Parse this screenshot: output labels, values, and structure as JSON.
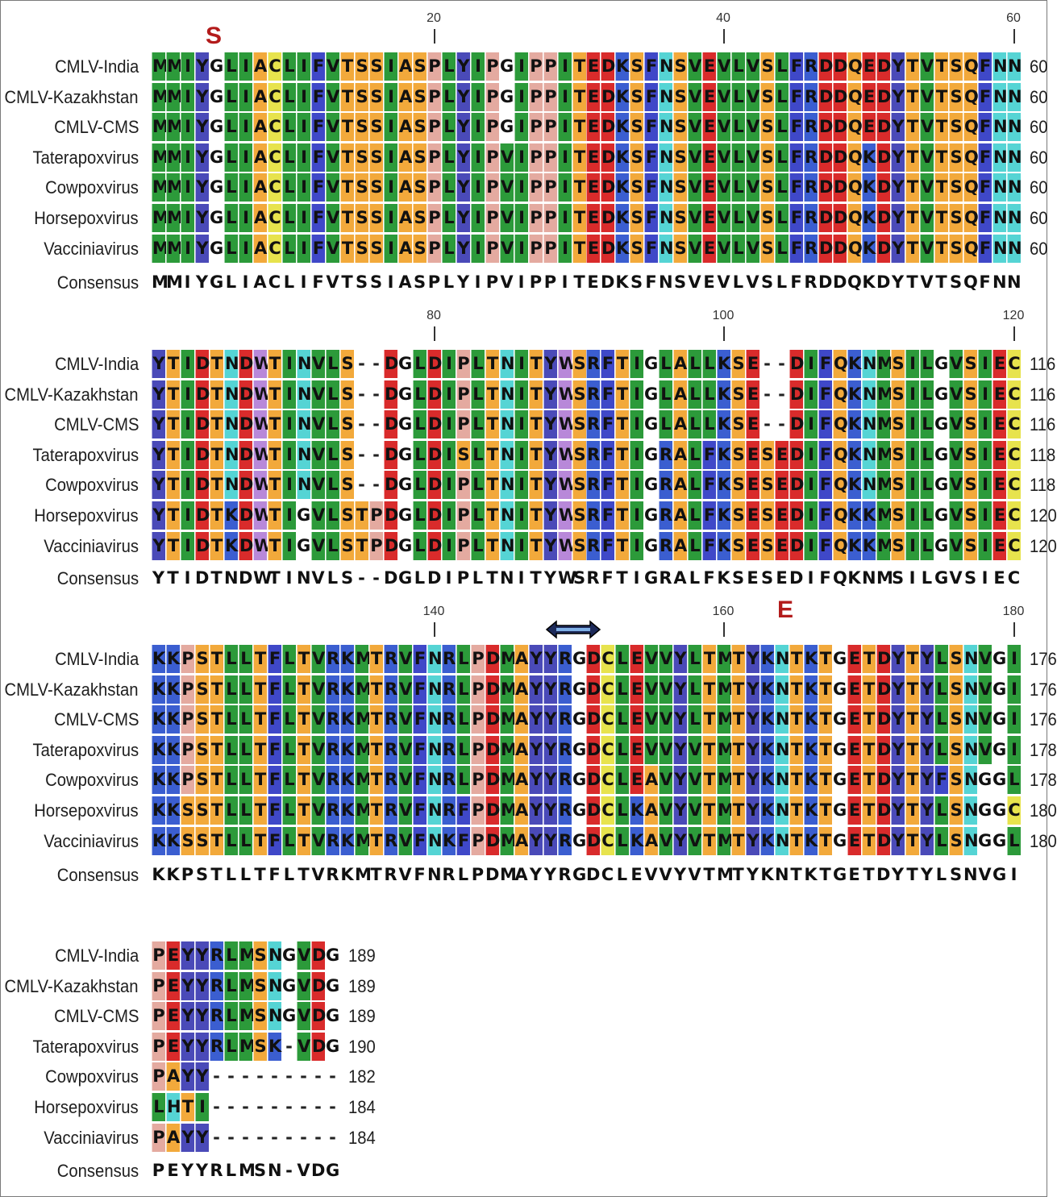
{
  "sequence_names": [
    "CMLV-India",
    "CMLV-Kazakhstan",
    "CMLV-CMS",
    "Taterapoxvirus",
    "Cowpoxvirus",
    "Horsepoxvirus",
    "Vacciniavirus"
  ],
  "consensus_label": "Consensus",
  "colors": {
    "A": "#f2a93b",
    "S": "#f2a93b",
    "T": "#f2a93b",
    "Q": "#f2a93b",
    "I": "#2c9a3a",
    "L": "#2c9a3a",
    "V": "#2c9a3a",
    "M": "#2c9a3a",
    "F": "#3f48c8",
    "W": "#b888d9",
    "Y": "#4a4ab8",
    "H": "#55d4d4",
    "N": "#55d4d4",
    "C": "#e7e34d",
    "G": "#ffffff",
    "P": "#e4aaa0",
    "D": "#d92b2b",
    "E": "#d92b2b",
    "K": "#3b5ed0",
    "R": "#3b5ed0",
    "-": "#ffffff"
  },
  "annotations": {
    "mark_S": "S",
    "mark_E": "E"
  },
  "blocks": [
    {
      "rows": [
        "MMIYGLIACLIFVTSSIASPLYIPGIPPITEDKSFNSVEVLVSLFRDDQEDYTVTSQFNN",
        "MMIYGLIACLIFVTSSIASPLYIPGIPPITEDKSFNSVEVLVSLFRDDQEDYTVTSQFNN",
        "MMIYGLIACLIFVTSSIASPLYIPGIPPITEDKSFNSVEVLVSLFRDDQEDYTVTSQFNN",
        "MMIYGLIACLIFVTSSIASPLYIPVIPPITEDKSFNSVEVLVSLFRDDQKDYTVTSQFNN",
        "MMIYGLIACLIFVTSSIASPLYIPVIPPITEDKSFNSVEVLVSLFRDDQKDYTVTSQFNN",
        "MMIYGLIACLIFVTSSIASPLYIPVIPPITEDKSFNSVEVLVSLFRDDQKDYTVTSQFNN",
        "MMIYGLIACLIFVTSSIASPLYIPVIPPITEDKSFNSVEVLVSLFRDDQKDYTVTSQFNN"
      ],
      "consensus": "MMIYGLIACLIFVTSSIASPLYIPVIPPITEDKSFNSVEVLVSLFRDDQKDYTVTSQFNN",
      "ends": [
        "60",
        "60",
        "60",
        "60",
        "60",
        "60",
        "60"
      ],
      "ticks": [
        {
          "label": "20",
          "col": 19
        },
        {
          "label": "40",
          "col": 39
        },
        {
          "label": "60",
          "col": 59
        }
      ]
    },
    {
      "rows": [
        "YTIDTNDWTINVLS--DGLDIPLTNITYWSRFTIGLALLKSE--DIFQKNMSILGVSIEC",
        "YTIDTNDWTINVLS--DGLDIPLTNITYWSRFTIGLALLKSE--DIFQKNMSILGVSIEC",
        "YTIDTNDWTINVLS--DGLDIPLTNITYWSRFTIGLALLKSE--DIFQKNMSILGVSIEC",
        "YTIDTNDWTINVLS--DGLDISLTNITYWSRFTIGRALFKSESEDIFQKNMSILGVSIEC",
        "YTIDTNDWTINVLS--DGLDIPLTNITYWSRFTIGRALFKSESEDIFQKNMSILGVSIEC",
        "YTIDTKDWTIGVLSTPDGLDIPLTNITYWSRFTIGRALFKSESEDIFQKKMSILGVSIEC",
        "YTIDTKDWTIGVLSTPDGLDIPLTNITYWSRFTIGRALFKSESEDIFQKKMSILGVSIEC"
      ],
      "consensus": "YTIDTNDWTINVLS--DGLDIPLTNITYWSRFTIGRALFKSESEDIFQKNMSILGVSIEC",
      "ends": [
        "116",
        "116",
        "116",
        "118",
        "118",
        "120",
        "120"
      ],
      "ticks": [
        {
          "label": "80",
          "col": 19
        },
        {
          "label": "100",
          "col": 39
        },
        {
          "label": "120",
          "col": 59
        }
      ]
    },
    {
      "rows": [
        "KKPSTLLTFLTVRKMTRVFNRLPDMAYYRGDCLEVVYLTMTYKNTKTGETDYTYLSNVGI",
        "KKPSTLLTFLTVRKMTRVFNRLPDMAYYRGDCLEVVYLTMTYKNTKTGETDYTYLSNVGI",
        "KKPSTLLTFLTVRKMTRVFNRLPDMAYYRGDCLEVVYLTMTYKNTKTGETDYTYLSNVGI",
        "KKPSTLLTFLTVRKMTRVFNRLPDMAYYRGDCLEVVYVTMTYKNTKTGETDYTYLSNVGI",
        "KKPSTLLTFLTVRKMTRVFNRLPDMAYYRGDCLEAVYVTMTYKNTKTGETDYTYFSNGGL",
        "KKSSTLLTFLTVRKMTRVFNRFPDMAYYRGDCLKAVYVTMTYKNTKTGETDYTYLSNGGC",
        "KKSSTLLTFLTVRKMTRVFNKFPDMAYYRGDCLKAVYVTMTYKNTKTGETDYTYLSNGGL"
      ],
      "consensus": "KKPSTLLTFLTVRKMTRVFNRLPDMAYYRGDCLEVVYVTMTYKNTKTGETDYTYLSNVGI",
      "ends": [
        "176",
        "176",
        "176",
        "178",
        "178",
        "180",
        "180"
      ],
      "ticks": [
        {
          "label": "140",
          "col": 19
        },
        {
          "label": "160",
          "col": 39
        },
        {
          "label": "180",
          "col": 59
        }
      ]
    },
    {
      "rows": [
        "PEYYRLMSNGVDG",
        "PEYYRLMSNGVDG",
        "PEYYRLMSNGVDG",
        "PEYYRLMSK-VDG",
        "PAYY---------",
        "LHTI---------",
        "PAYY---------"
      ],
      "consensus": "PEYYRLMSN-VDG",
      "ends": [
        "189",
        "189",
        "189",
        "190",
        "182",
        "184",
        "184"
      ],
      "ticks": []
    }
  ]
}
